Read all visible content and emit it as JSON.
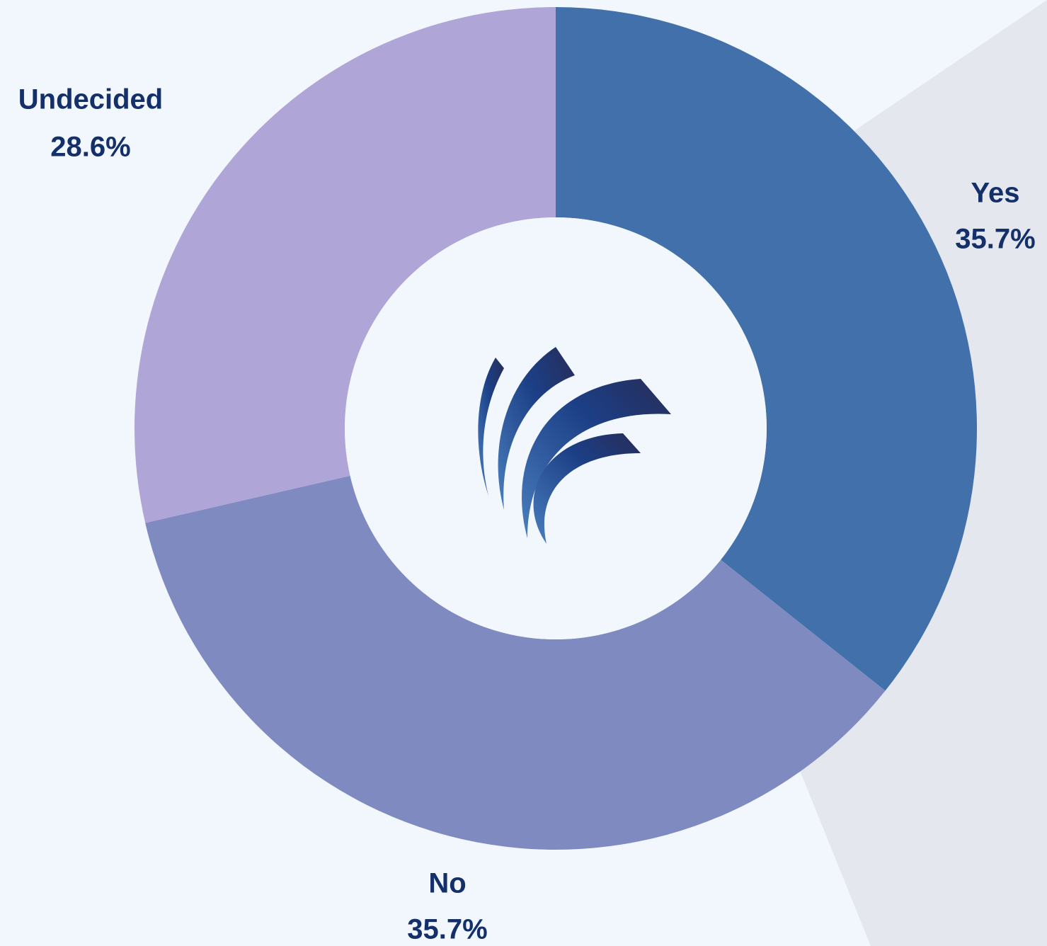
{
  "chart_data": {
    "type": "pie",
    "categories": [
      "Yes",
      "No",
      "Undecided"
    ],
    "values": [
      35.7,
      35.7,
      28.6
    ],
    "value_labels": [
      "35.7%",
      "35.7%",
      "28.6%"
    ],
    "colors": [
      "#4270aa",
      "#7f8ac0",
      "#afa5d6"
    ]
  }
}
